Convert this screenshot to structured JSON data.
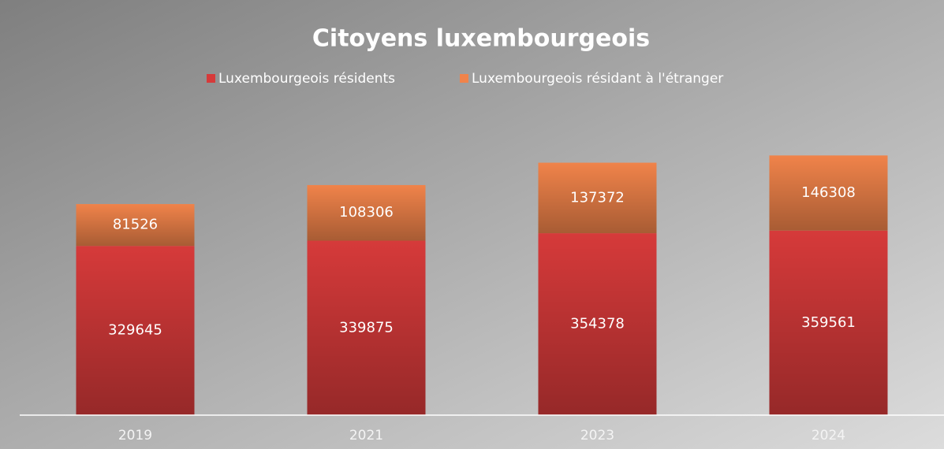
{
  "chart_data": {
    "type": "bar",
    "stacked": true,
    "title": "Citoyens luxembourgeois",
    "categories": [
      "2019",
      "2021",
      "2023",
      "2024"
    ],
    "series": [
      {
        "name": "Luxembourgeois résidents",
        "color": "#d63a3a",
        "values": [
          329645,
          339875,
          354378,
          359561
        ]
      },
      {
        "name": "Luxembourgeois résidant à l'étranger",
        "color": "#f0834a",
        "values": [
          81526,
          108306,
          137372,
          146308
        ]
      }
    ],
    "ylim": [
      0,
      600000
    ],
    "legend": "top"
  }
}
